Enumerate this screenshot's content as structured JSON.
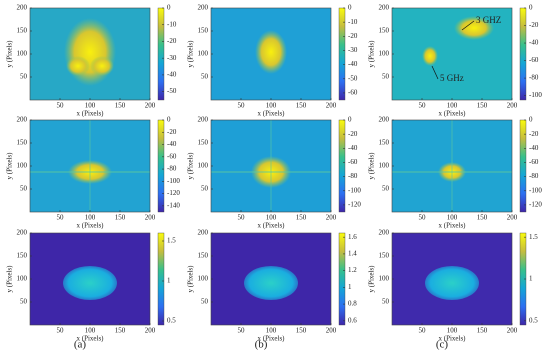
{
  "chart_data": [
    {
      "type": "heatmap",
      "xlabel": "x (Pixels)",
      "ylabel": "y (Pixels)",
      "xlim": [
        0,
        200
      ],
      "ylim": [
        0,
        200
      ],
      "xticks": [
        50,
        100,
        150,
        200
      ],
      "yticks": [
        50,
        100,
        150,
        200
      ],
      "clim": [
        -55,
        0
      ],
      "cticks": [
        0,
        -10,
        -20,
        -30,
        -40,
        -50
      ],
      "colormap": "parula"
    },
    {
      "type": "heatmap",
      "xlabel": "x (Pixels)",
      "ylabel": "y (Pixels)",
      "xlim": [
        0,
        200
      ],
      "ylim": [
        0,
        200
      ],
      "xticks": [
        50,
        100,
        150,
        200
      ],
      "yticks": [
        50,
        100,
        150,
        200
      ],
      "clim": [
        -65,
        0
      ],
      "cticks": [
        0,
        -10,
        -20,
        -30,
        -40,
        -50,
        -60
      ],
      "colormap": "parula"
    },
    {
      "type": "heatmap",
      "xlabel": "x (Pixels)",
      "ylabel": "y (Pixels)",
      "xlim": [
        0,
        200
      ],
      "ylim": [
        0,
        200
      ],
      "xticks": [
        50,
        100,
        150,
        200
      ],
      "yticks": [
        50,
        100,
        150,
        200
      ],
      "clim": [
        -105,
        0
      ],
      "cticks": [
        0,
        -20,
        -40,
        -60,
        -80,
        -100
      ],
      "colormap": "parula",
      "annotations": [
        "3 GHZ",
        "5 GHz"
      ]
    },
    {
      "type": "heatmap",
      "xlabel": "x (Pixels)",
      "ylabel": "y (Pixels)",
      "xlim": [
        0,
        200
      ],
      "ylim": [
        0,
        200
      ],
      "xticks": [
        50,
        100,
        150,
        200
      ],
      "yticks": [
        50,
        100,
        150,
        200
      ],
      "clim": [
        -150,
        0
      ],
      "cticks": [
        0,
        -20,
        -40,
        -60,
        -80,
        -100,
        -120,
        -140
      ],
      "colormap": "parula"
    },
    {
      "type": "heatmap",
      "xlabel": "x (Pixels)",
      "ylabel": "y (Pixels)",
      "xlim": [
        0,
        200
      ],
      "ylim": [
        0,
        200
      ],
      "xticks": [
        50,
        100,
        150,
        200
      ],
      "yticks": [
        50,
        100,
        150,
        200
      ],
      "clim": [
        -130,
        0
      ],
      "cticks": [
        0,
        -20,
        -40,
        -60,
        -80,
        -100,
        -120
      ],
      "colormap": "parula"
    },
    {
      "type": "heatmap",
      "xlabel": "x (Pixels)",
      "ylabel": "y (Pixels)",
      "xlim": [
        0,
        200
      ],
      "ylim": [
        0,
        200
      ],
      "xticks": [
        50,
        100,
        150,
        200
      ],
      "yticks": [
        50,
        100,
        150,
        200
      ],
      "clim": [
        -130,
        0
      ],
      "cticks": [
        0,
        -20,
        -40,
        -60,
        -80,
        -100,
        -120
      ],
      "colormap": "parula"
    },
    {
      "type": "heatmap",
      "xlabel": "x (Pixels)",
      "ylabel": "y (Pixels)",
      "xlim": [
        0,
        200
      ],
      "ylim": [
        0,
        200
      ],
      "xticks": [
        50,
        100,
        150,
        200
      ],
      "yticks": [
        50,
        100,
        150,
        200
      ],
      "clim": [
        0.45,
        1.6
      ],
      "cticks": [
        0.5,
        1,
        1.5
      ],
      "colormap": "parula"
    },
    {
      "type": "heatmap",
      "xlabel": "x (Pixels)",
      "ylabel": "y (Pixels)",
      "xlim": [
        0,
        200
      ],
      "ylim": [
        0,
        200
      ],
      "xticks": [
        50,
        100,
        150,
        200
      ],
      "yticks": [
        50,
        100,
        150,
        200
      ],
      "clim": [
        0.55,
        1.65
      ],
      "cticks": [
        0.6,
        0.8,
        1,
        1.2,
        1.4,
        1.6
      ],
      "colormap": "parula"
    },
    {
      "type": "heatmap",
      "xlabel": "x (Pixels)",
      "ylabel": "y (Pixels)",
      "xlim": [
        0,
        200
      ],
      "ylim": [
        0,
        200
      ],
      "xticks": [
        50,
        100,
        150,
        200
      ],
      "yticks": [
        50,
        100,
        150,
        200
      ],
      "clim": [
        0.45,
        1.55
      ],
      "cticks": [
        0.5,
        1,
        1.5
      ],
      "colormap": "parula"
    }
  ],
  "panel_labels": [
    "(a)",
    "(b)",
    "(c)"
  ]
}
